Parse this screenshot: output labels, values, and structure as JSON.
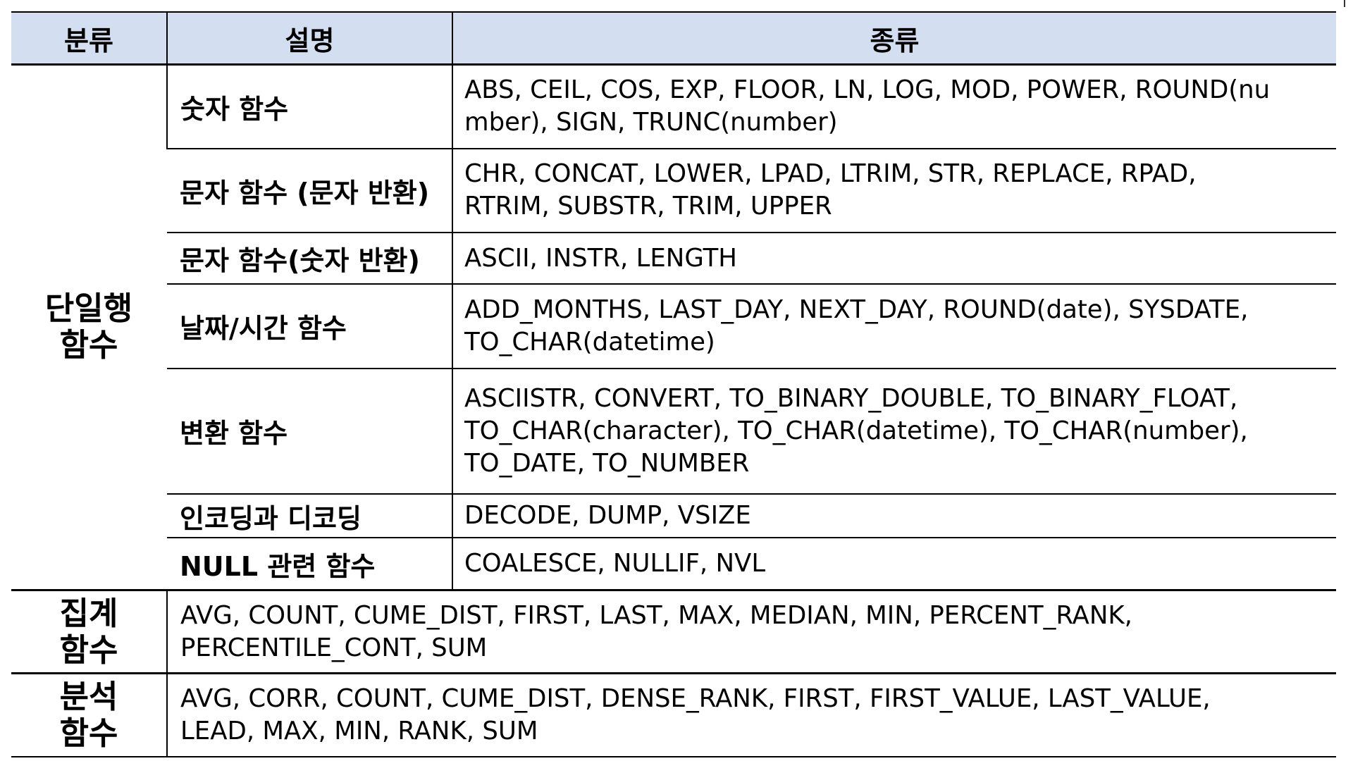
{
  "headers": {
    "category": "분류",
    "description": "설명",
    "kinds": "종류"
  },
  "groups": [
    {
      "category_lines": [
        "단일행",
        "함수"
      ],
      "rows": [
        {
          "description": "숫자 함수",
          "kinds_lines": [
            "ABS, CEIL, COS, EXP, FLOOR, LN, LOG, MOD, POWER, ROUND(nu",
            "mber), SIGN, TRUNC(number)"
          ]
        },
        {
          "description": "문자 함수 (문자 반환)",
          "kinds_lines": [
            "CHR, CONCAT, LOWER, LPAD, LTRIM, STR, REPLACE, RPAD,",
            "RTRIM, SUBSTR, TRIM, UPPER"
          ]
        },
        {
          "description": "문자 함수(숫자 반환)",
          "kinds_lines": [
            "ASCII, INSTR, LENGTH"
          ]
        },
        {
          "description": "날짜/시간 함수",
          "kinds_lines": [
            "ADD_MONTHS, LAST_DAY, NEXT_DAY, ROUND(date), SYSDATE,",
            "TO_CHAR(datetime)"
          ]
        },
        {
          "description": "변환 함수",
          "kinds_lines": [
            "ASCIISTR, CONVERT, TO_BINARY_DOUBLE, TO_BINARY_FLOAT,",
            "TO_CHAR(character), TO_CHAR(datetime), TO_CHAR(number),",
            "TO_DATE, TO_NUMBER"
          ]
        },
        {
          "description": "인코딩과 디코딩",
          "kinds_lines": [
            "DECODE, DUMP, VSIZE"
          ]
        },
        {
          "description": "NULL 관련 함수",
          "kinds_lines": [
            "COALESCE, NULLIF, NVL"
          ]
        }
      ]
    },
    {
      "category_lines": [
        "집계",
        "함수"
      ],
      "kinds_lines": [
        "AVG, COUNT, CUME_DIST, FIRST, LAST, MAX, MEDIAN, MIN, PERCENT_RANK,",
        "PERCENTILE_CONT, SUM"
      ]
    },
    {
      "category_lines": [
        "분석",
        "함수"
      ],
      "kinds_lines": [
        "AVG, CORR, COUNT, CUME_DIST, DENSE_RANK, FIRST, FIRST_VALUE, LAST_VALUE,",
        "LEAD, MAX, MIN, RANK, SUM"
      ]
    }
  ]
}
